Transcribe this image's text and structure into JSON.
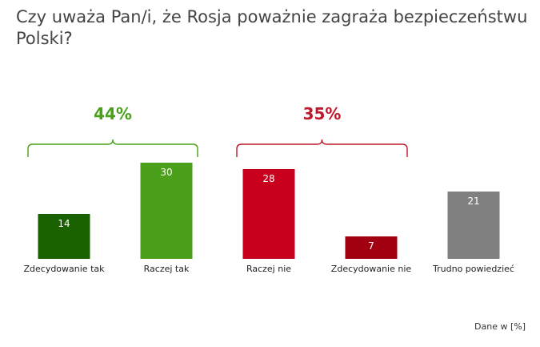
{
  "title": "Czy uważa Pan/i, że Rosja poważnie zagraża bezpieczeństwu Polski?",
  "source_note": "Dane w [%]",
  "colors": {
    "decidedly_yes": "#1a6100",
    "rather_yes": "#4aa01a",
    "rather_no": "#c8001e",
    "decidedly_no": "#a00010",
    "hard_to_say": "#808080",
    "group_yes": "#4aa01a",
    "group_no": "#c0182a"
  },
  "chart_data": {
    "type": "bar",
    "title": "Czy uważa Pan/i, że Rosja poważnie zagraża bezpieczeństwu Polski?",
    "categories": [
      "Zdecydowanie tak",
      "Raczej tak",
      "Raczej nie",
      "Zdecydowanie nie",
      "Trudno powiedzieć"
    ],
    "values": [
      14,
      30,
      28,
      7,
      21
    ],
    "data_labels": [
      "14",
      "30",
      "28",
      "7",
      "21"
    ],
    "bar_colors": [
      "#1a6100",
      "#4aa01a",
      "#c8001e",
      "#a00010",
      "#808080"
    ],
    "ylim": [
      0,
      30
    ],
    "grid": false,
    "legend": "none",
    "groups": [
      {
        "label": "44%",
        "value": 44,
        "categories": [
          "Zdecydowanie tak",
          "Raczej tak"
        ],
        "color": "#4aa01a"
      },
      {
        "label": "35%",
        "value": 35,
        "categories": [
          "Raczej nie",
          "Zdecydowanie nie"
        ],
        "color": "#c0182a"
      }
    ]
  }
}
